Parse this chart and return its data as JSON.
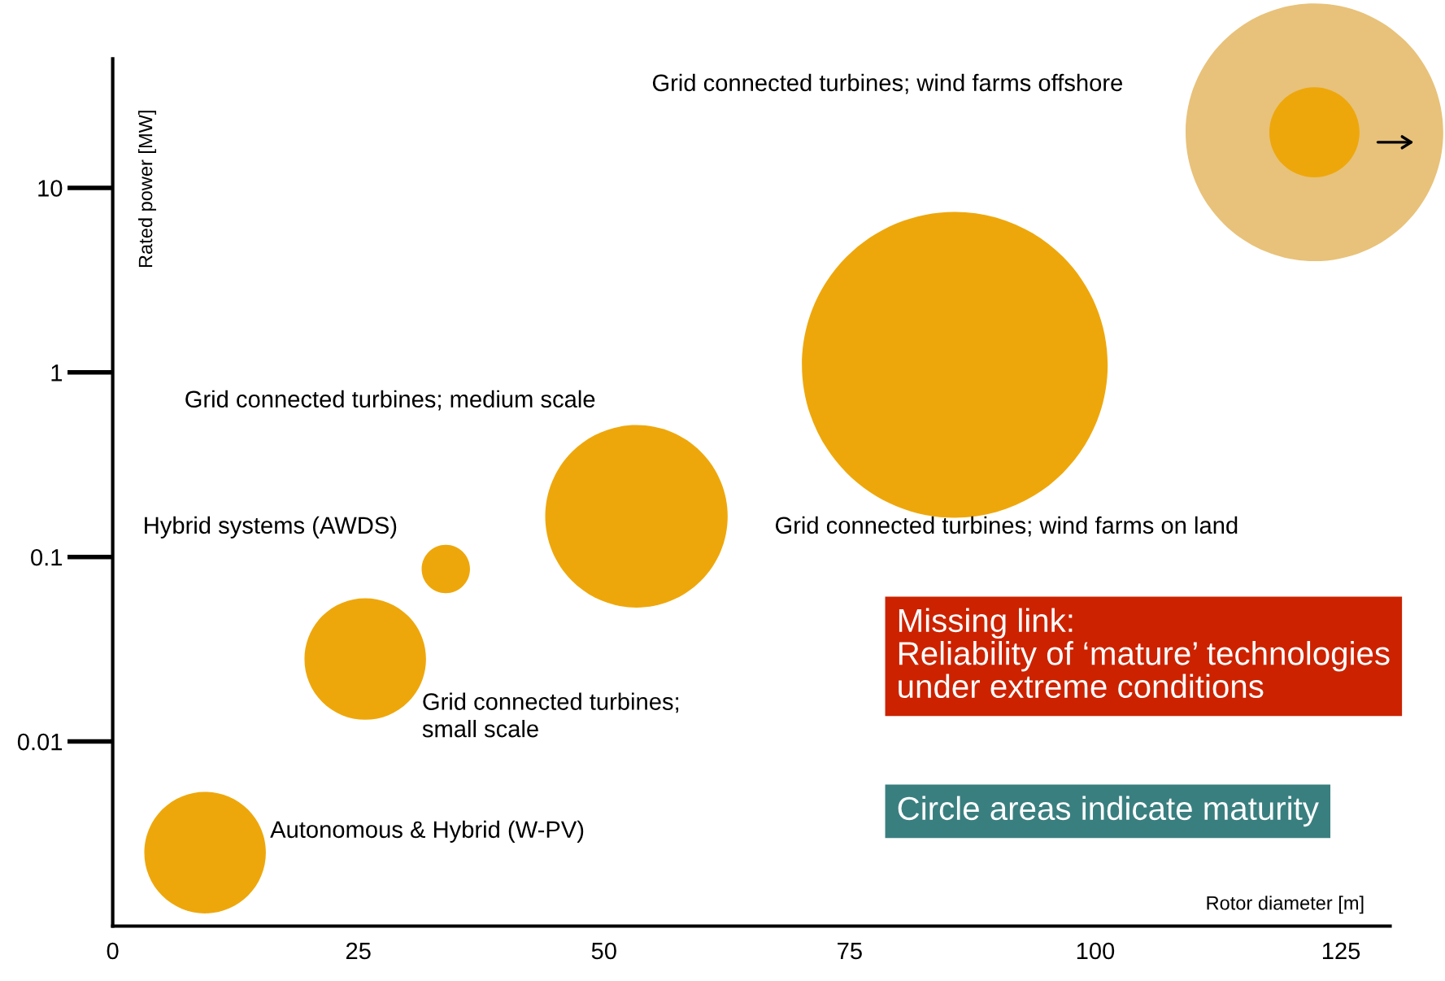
{
  "chart_data": {
    "type": "bubble",
    "xlabel": "Rotor diameter [m]",
    "ylabel": "Rated power [MW]",
    "log": "y",
    "xlim": [
      0,
      130
    ],
    "ylim": [
      0.001,
      50
    ],
    "xticks": [
      0,
      25,
      50,
      75,
      100,
      125
    ],
    "yticks": [
      0.01,
      0.1,
      1,
      10
    ],
    "grid": false,
    "tick_labels": "xy",
    "series": [
      {
        "color": "#e8c27a",
        "x": [
          122.3
        ],
        "values": [
          20
        ],
        "sizes": [
          0.71
        ]
      },
      {
        "color": "#eea70b",
        "x": [
          9.4,
          25.7,
          33.9,
          53.3,
          85.7,
          122.3
        ],
        "values": [
          0.0025,
          0.028,
          0.086,
          0.166,
          1.1,
          20
        ],
        "sizes": [
          0.158,
          0.158,
          0.025,
          0.356,
          1,
          0.087
        ]
      }
    ],
    "annotations": [
      "Grid connected turbines; wind farms offshore",
      "Grid connected turbines; wind farms on land",
      "Grid connected turbines; medium scale",
      "Hybrid systems (AWDS)",
      "Grid connected turbines;\nsmall scale",
      "Autonomous & Hybrid (W-PV)",
      "Missing link:\nReliability of ‘mature’ technologies\nunder extreme conditions",
      "Circle areas indicate maturity"
    ]
  }
}
